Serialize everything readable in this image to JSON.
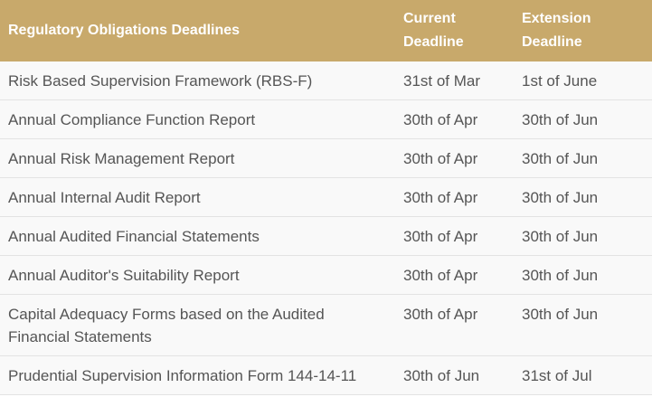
{
  "table": {
    "headers": {
      "obligation": "Regulatory Obligations Deadlines",
      "current": "Current Deadline",
      "extension": "Extension Deadline"
    },
    "rows": [
      {
        "obligation": "Risk Based Supervision Framework (RBS-F)",
        "current": "31st of Mar",
        "extension": "1st of June"
      },
      {
        "obligation": "Annual Compliance Function Report",
        "current": "30th of Apr",
        "extension": "30th of Jun"
      },
      {
        "obligation": "Annual Risk Management Report",
        "current": "30th of Apr",
        "extension": "30th of Jun"
      },
      {
        "obligation": "Annual Internal Audit Report",
        "current": "30th of Apr",
        "extension": "30th of Jun"
      },
      {
        "obligation": "Annual Audited Financial Statements",
        "current": "30th of Apr",
        "extension": "30th of Jun"
      },
      {
        "obligation": "Annual Auditor's Suitability Report",
        "current": "30th of Apr",
        "extension": "30th of Jun"
      },
      {
        "obligation": "Capital Adequacy Forms based on the Audited Financial Statements",
        "current": "30th of Apr",
        "extension": "30th of Jun"
      },
      {
        "obligation": "Prudential Supervision Information Form 144-14-11",
        "current": "30th of Jun",
        "extension": "31st of Jul"
      }
    ]
  },
  "colors": {
    "header_background": "#c8a96b",
    "header_text": "#ffffff",
    "body_text": "#555555",
    "row_background": "#f9f9f9",
    "row_border": "#e3e3e3"
  }
}
